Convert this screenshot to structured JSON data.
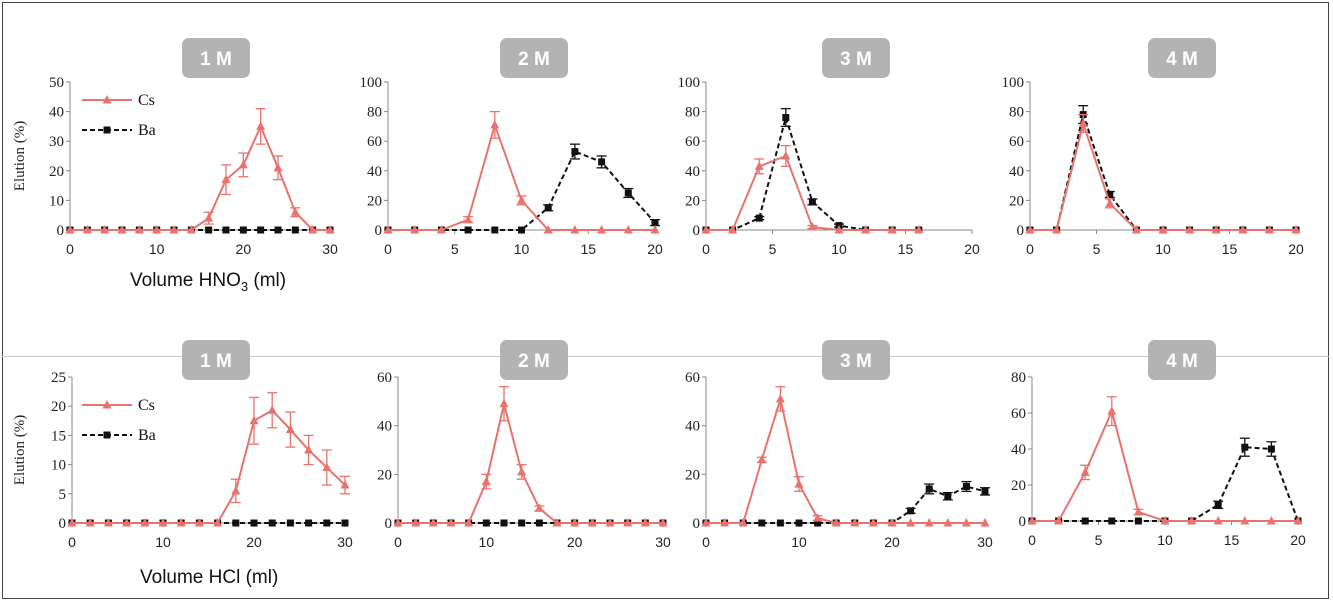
{
  "xlabels": {
    "top": [
      "Volume HNO",
      "3",
      " (ml)"
    ],
    "bottom": "Volume HCl (ml)"
  },
  "legend": {
    "cs": "Cs",
    "ba": "Ba"
  },
  "colors": {
    "cs": "#e8736e",
    "ba": "#111111",
    "badge": "#b3b3b3",
    "badge_text": "#ffffff"
  },
  "chart_data": [
    {
      "type": "line",
      "group": "HNO3",
      "panel_label": "1 M",
      "ylabel": "Elution (%)",
      "xlim": [
        0,
        30
      ],
      "ylim": [
        0,
        50
      ],
      "xticks": [
        0,
        10,
        20,
        30
      ],
      "yticks": [
        0,
        10,
        20,
        30,
        40,
        50
      ],
      "series": [
        {
          "name": "Cs",
          "x": [
            0,
            2,
            4,
            6,
            8,
            10,
            12,
            14,
            16,
            18,
            20,
            22,
            24,
            26,
            28,
            30
          ],
          "y": [
            0,
            0,
            0,
            0,
            0,
            0,
            0,
            0,
            4,
            17,
            22,
            35,
            21,
            6,
            0,
            0
          ],
          "err": [
            0,
            0,
            0,
            0,
            0,
            0,
            0,
            0,
            2,
            5,
            4,
            6,
            4,
            1.5,
            0,
            0
          ]
        },
        {
          "name": "Ba",
          "x": [
            0,
            2,
            4,
            6,
            8,
            10,
            12,
            14,
            16,
            18,
            20,
            22,
            24,
            26,
            28,
            30
          ],
          "y": [
            0,
            0,
            0,
            0,
            0,
            0,
            0,
            0,
            0,
            0,
            0,
            0,
            0,
            0,
            0,
            0
          ],
          "err": [
            0,
            0,
            0,
            0,
            0,
            0,
            0,
            0,
            0,
            0,
            0,
            0,
            0,
            0,
            0,
            0
          ]
        }
      ]
    },
    {
      "type": "line",
      "group": "HNO3",
      "panel_label": "2 M",
      "xlim": [
        0,
        20
      ],
      "ylim": [
        0,
        100
      ],
      "xticks": [
        0,
        5,
        10,
        15,
        20
      ],
      "yticks": [
        0,
        20,
        40,
        60,
        80,
        100
      ],
      "series": [
        {
          "name": "Cs",
          "x": [
            0,
            2,
            4,
            6,
            8,
            10,
            12,
            14,
            16,
            18,
            20
          ],
          "y": [
            0,
            0,
            0,
            7,
            71,
            20,
            0,
            0,
            0,
            0,
            0
          ],
          "err": [
            0,
            0,
            0,
            2,
            9,
            3,
            0,
            0,
            0,
            0,
            0
          ]
        },
        {
          "name": "Ba",
          "x": [
            0,
            2,
            4,
            6,
            8,
            10,
            12,
            14,
            16,
            18,
            20
          ],
          "y": [
            0,
            0,
            0,
            0,
            0,
            0,
            15,
            53,
            46,
            25,
            5
          ],
          "err": [
            0,
            0,
            0,
            0,
            0,
            0,
            2,
            5,
            4,
            3,
            2
          ]
        }
      ]
    },
    {
      "type": "line",
      "group": "HNO3",
      "panel_label": "3 M",
      "xlim": [
        0,
        20
      ],
      "ylim": [
        0,
        100
      ],
      "xticks": [
        0,
        5,
        10,
        15,
        20
      ],
      "yticks": [
        0,
        20,
        40,
        60,
        80,
        100
      ],
      "series": [
        {
          "name": "Cs",
          "x": [
            0,
            2,
            4,
            6,
            8,
            10,
            12,
            14,
            16
          ],
          "y": [
            0,
            0,
            43,
            50,
            2,
            0,
            0,
            0,
            0
          ],
          "err": [
            0,
            0,
            5,
            7,
            1,
            0,
            0,
            0,
            0
          ]
        },
        {
          "name": "Ba",
          "x": [
            0,
            2,
            4,
            6,
            8,
            10,
            12,
            14,
            16
          ],
          "y": [
            0,
            0,
            8,
            76,
            19,
            3,
            0,
            0,
            0
          ],
          "err": [
            0,
            0,
            1,
            6,
            2,
            1,
            0,
            0,
            0
          ]
        }
      ]
    },
    {
      "type": "line",
      "group": "HNO3",
      "panel_label": "4 M",
      "xlim": [
        0,
        20
      ],
      "ylim": [
        0,
        100
      ],
      "xticks": [
        0,
        5,
        10,
        15,
        20
      ],
      "yticks": [
        0,
        20,
        40,
        60,
        80,
        100
      ],
      "series": [
        {
          "name": "Cs",
          "x": [
            0,
            2,
            4,
            6,
            8,
            10,
            12,
            14,
            16,
            18,
            20
          ],
          "y": [
            0,
            0,
            72,
            18,
            0,
            0,
            0,
            0,
            0,
            0,
            0
          ],
          "err": [
            0,
            0,
            6,
            3,
            0,
            0,
            0,
            0,
            0,
            0,
            0
          ]
        },
        {
          "name": "Ba",
          "x": [
            0,
            2,
            4,
            6,
            8,
            10,
            12,
            14,
            16,
            18,
            20
          ],
          "y": [
            0,
            0,
            78,
            24,
            0,
            0,
            0,
            0,
            0,
            0,
            0
          ],
          "err": [
            0,
            0,
            6,
            2,
            0,
            0,
            0,
            0,
            0,
            0,
            0
          ]
        }
      ]
    },
    {
      "type": "line",
      "group": "HCl",
      "panel_label": "1 M",
      "ylabel": "Elution (%)",
      "xlim": [
        0,
        30
      ],
      "ylim": [
        0,
        25
      ],
      "xticks": [
        0,
        10,
        20,
        30
      ],
      "yticks": [
        0,
        5,
        10,
        15,
        20,
        25
      ],
      "series": [
        {
          "name": "Cs",
          "x": [
            0,
            2,
            4,
            6,
            8,
            10,
            12,
            14,
            16,
            18,
            20,
            22,
            24,
            26,
            28,
            30
          ],
          "y": [
            0,
            0,
            0,
            0,
            0,
            0,
            0,
            0,
            0,
            5.5,
            17.5,
            19.3,
            16,
            12.5,
            9.5,
            6.5
          ],
          "err": [
            0,
            0,
            0,
            0,
            0,
            0,
            0,
            0,
            0,
            2,
            4,
            3,
            3,
            2.5,
            3,
            1.5
          ]
        },
        {
          "name": "Ba",
          "x": [
            0,
            2,
            4,
            6,
            8,
            10,
            12,
            14,
            16,
            18,
            20,
            22,
            24,
            26,
            28,
            30
          ],
          "y": [
            0,
            0,
            0,
            0,
            0,
            0,
            0,
            0,
            0,
            0,
            0,
            0,
            0,
            0,
            0,
            0
          ],
          "err": [
            0,
            0,
            0,
            0,
            0,
            0,
            0,
            0,
            0,
            0,
            0,
            0,
            0,
            0,
            0,
            0
          ]
        }
      ]
    },
    {
      "type": "line",
      "group": "HCl",
      "panel_label": "2 M",
      "xlim": [
        0,
        30
      ],
      "ylim": [
        0,
        60
      ],
      "xticks": [
        0,
        10,
        20,
        30
      ],
      "yticks": [
        0,
        20,
        40,
        60
      ],
      "series": [
        {
          "name": "Cs",
          "x": [
            0,
            2,
            4,
            6,
            8,
            10,
            12,
            14,
            16,
            18,
            20,
            22,
            24,
            26,
            28,
            30
          ],
          "y": [
            0,
            0,
            0,
            0,
            0,
            17,
            49,
            21,
            6,
            0,
            0,
            0,
            0,
            0,
            0,
            0
          ],
          "err": [
            0,
            0,
            0,
            0,
            0,
            3,
            7,
            3,
            1,
            0,
            0,
            0,
            0,
            0,
            0,
            0
          ]
        },
        {
          "name": "Ba",
          "x": [
            0,
            2,
            4,
            6,
            8,
            10,
            12,
            14,
            16,
            18,
            20,
            22,
            24,
            26,
            28,
            30
          ],
          "y": [
            0,
            0,
            0,
            0,
            0,
            0,
            0,
            0,
            0,
            0,
            0,
            0,
            0,
            0,
            0,
            0
          ],
          "err": [
            0,
            0,
            0,
            0,
            0,
            0,
            0,
            0,
            0,
            0,
            0,
            0,
            0,
            0,
            0,
            0
          ]
        }
      ]
    },
    {
      "type": "line",
      "group": "HCl",
      "panel_label": "3 M",
      "xlim": [
        0,
        30
      ],
      "ylim": [
        0,
        60
      ],
      "xticks": [
        0,
        10,
        20,
        30
      ],
      "yticks": [
        0,
        20,
        40,
        60
      ],
      "series": [
        {
          "name": "Cs",
          "x": [
            0,
            2,
            4,
            6,
            8,
            10,
            12,
            14,
            16,
            18,
            20,
            22,
            24,
            26,
            28,
            30
          ],
          "y": [
            0,
            0,
            0,
            26,
            51,
            16,
            2,
            0,
            0,
            0,
            0,
            0,
            0,
            0,
            0,
            0
          ],
          "err": [
            0,
            0,
            0,
            1,
            5,
            3,
            1,
            0,
            0,
            0,
            0,
            0,
            0,
            0,
            0,
            0
          ]
        },
        {
          "name": "Ba",
          "x": [
            0,
            2,
            4,
            6,
            8,
            10,
            12,
            14,
            16,
            18,
            20,
            22,
            24,
            26,
            28,
            30
          ],
          "y": [
            0,
            0,
            0,
            0,
            0,
            0,
            0,
            0,
            0,
            0,
            0,
            5,
            14,
            11,
            15,
            13
          ],
          "err": [
            0,
            0,
            0,
            0,
            0,
            0,
            0,
            0,
            0,
            0,
            0,
            1,
            2,
            1.5,
            2,
            1.5
          ]
        }
      ]
    },
    {
      "type": "line",
      "group": "HCl",
      "panel_label": "4 M",
      "xlim": [
        0,
        20
      ],
      "ylim": [
        0,
        80
      ],
      "xticks": [
        0,
        5,
        10,
        15,
        20
      ],
      "yticks": [
        0,
        20,
        40,
        60,
        80
      ],
      "series": [
        {
          "name": "Cs",
          "x": [
            0,
            2,
            4,
            6,
            8,
            10,
            12,
            14,
            16,
            18,
            20
          ],
          "y": [
            0,
            0,
            27,
            61,
            5,
            0,
            0,
            0,
            0,
            0,
            0
          ],
          "err": [
            0,
            0,
            4,
            8,
            1.5,
            0,
            0,
            0,
            0,
            0,
            0
          ]
        },
        {
          "name": "Ba",
          "x": [
            0,
            2,
            4,
            6,
            8,
            10,
            12,
            14,
            16,
            18,
            20
          ],
          "y": [
            0,
            0,
            0,
            0,
            0,
            0,
            0,
            9,
            41,
            40,
            0
          ],
          "err": [
            0,
            0,
            0,
            0,
            0,
            0,
            0,
            2,
            5,
            4,
            0
          ]
        }
      ]
    }
  ]
}
